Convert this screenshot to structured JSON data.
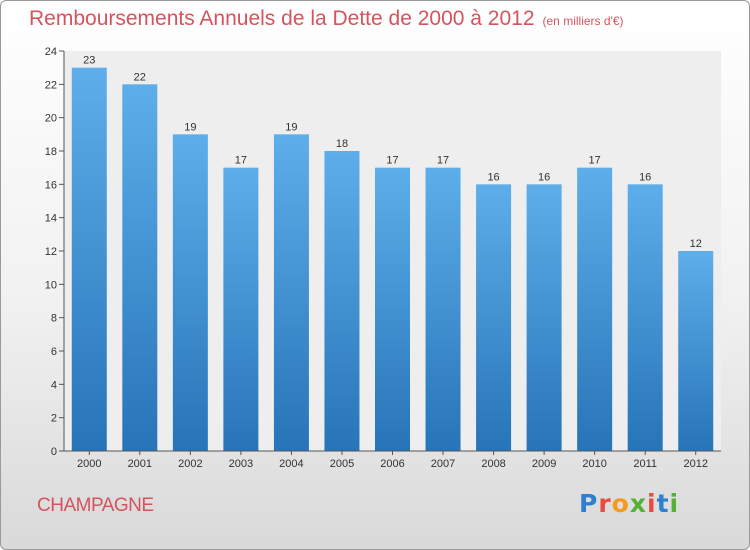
{
  "header": {
    "title": "Remboursements Annuels de la Dette de 2000 à 2012",
    "unit": "(en milliers d'€)"
  },
  "footer": {
    "commune": "CHAMPAGNE",
    "logo_text": "Proxiti",
    "logo_colors": [
      "#2f7fd0",
      "#e94b3c",
      "#f29b1d",
      "#53b233",
      "#e94b3c",
      "#2f7fd0",
      "#53b233"
    ]
  },
  "colors": {
    "title": "#d4545f",
    "bar_top": "#5daeea",
    "bar_bottom": "#2774b8"
  },
  "chart_data": {
    "type": "bar",
    "title": "Remboursements Annuels de la Dette de 2000 à 2012",
    "xlabel": "",
    "ylabel": "",
    "categories": [
      "2000",
      "2001",
      "2002",
      "2003",
      "2004",
      "2005",
      "2006",
      "2007",
      "2008",
      "2009",
      "2010",
      "2011",
      "2012"
    ],
    "values": [
      23,
      22,
      19,
      17,
      19,
      18,
      17,
      17,
      16,
      16,
      17,
      16,
      12
    ],
    "ylim": [
      0,
      24
    ],
    "yticks": [
      0,
      2,
      4,
      6,
      8,
      10,
      12,
      14,
      16,
      18,
      20,
      22,
      24
    ],
    "grid": false,
    "legend": "none"
  }
}
